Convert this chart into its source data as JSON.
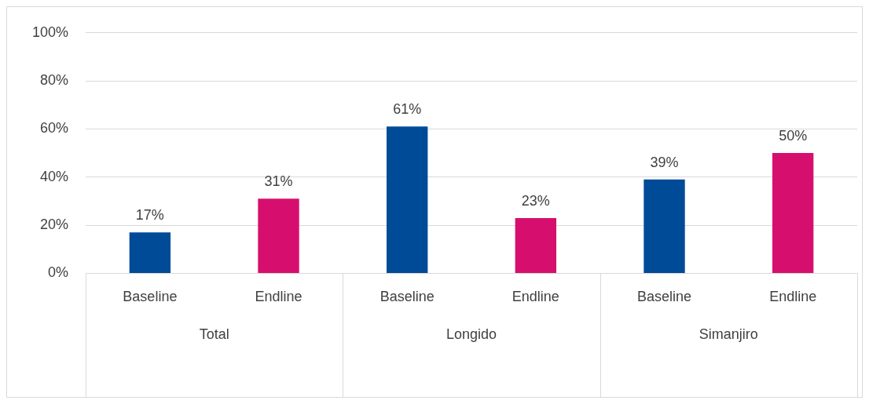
{
  "chart_data": {
    "type": "bar",
    "categories": [
      "Total",
      "Longido",
      "Simanjiro"
    ],
    "series": [
      {
        "name": "Baseline",
        "color": "#004b97",
        "values": [
          17,
          61,
          39
        ],
        "value_labels": [
          "17%",
          "61%",
          "39%"
        ]
      },
      {
        "name": "Endline",
        "color": "#d60f6e",
        "values": [
          31,
          23,
          50
        ],
        "value_labels": [
          "31%",
          "23%",
          "50%"
        ]
      }
    ],
    "ylim": [
      0,
      100
    ],
    "yticks": [
      {
        "value": 0,
        "label": "0%"
      },
      {
        "value": 20,
        "label": "20%"
      },
      {
        "value": 40,
        "label": "40%"
      },
      {
        "value": 60,
        "label": "60%"
      },
      {
        "value": 80,
        "label": "80%"
      },
      {
        "value": 100,
        "label": "100%"
      }
    ],
    "grid": "y",
    "legend": false
  }
}
